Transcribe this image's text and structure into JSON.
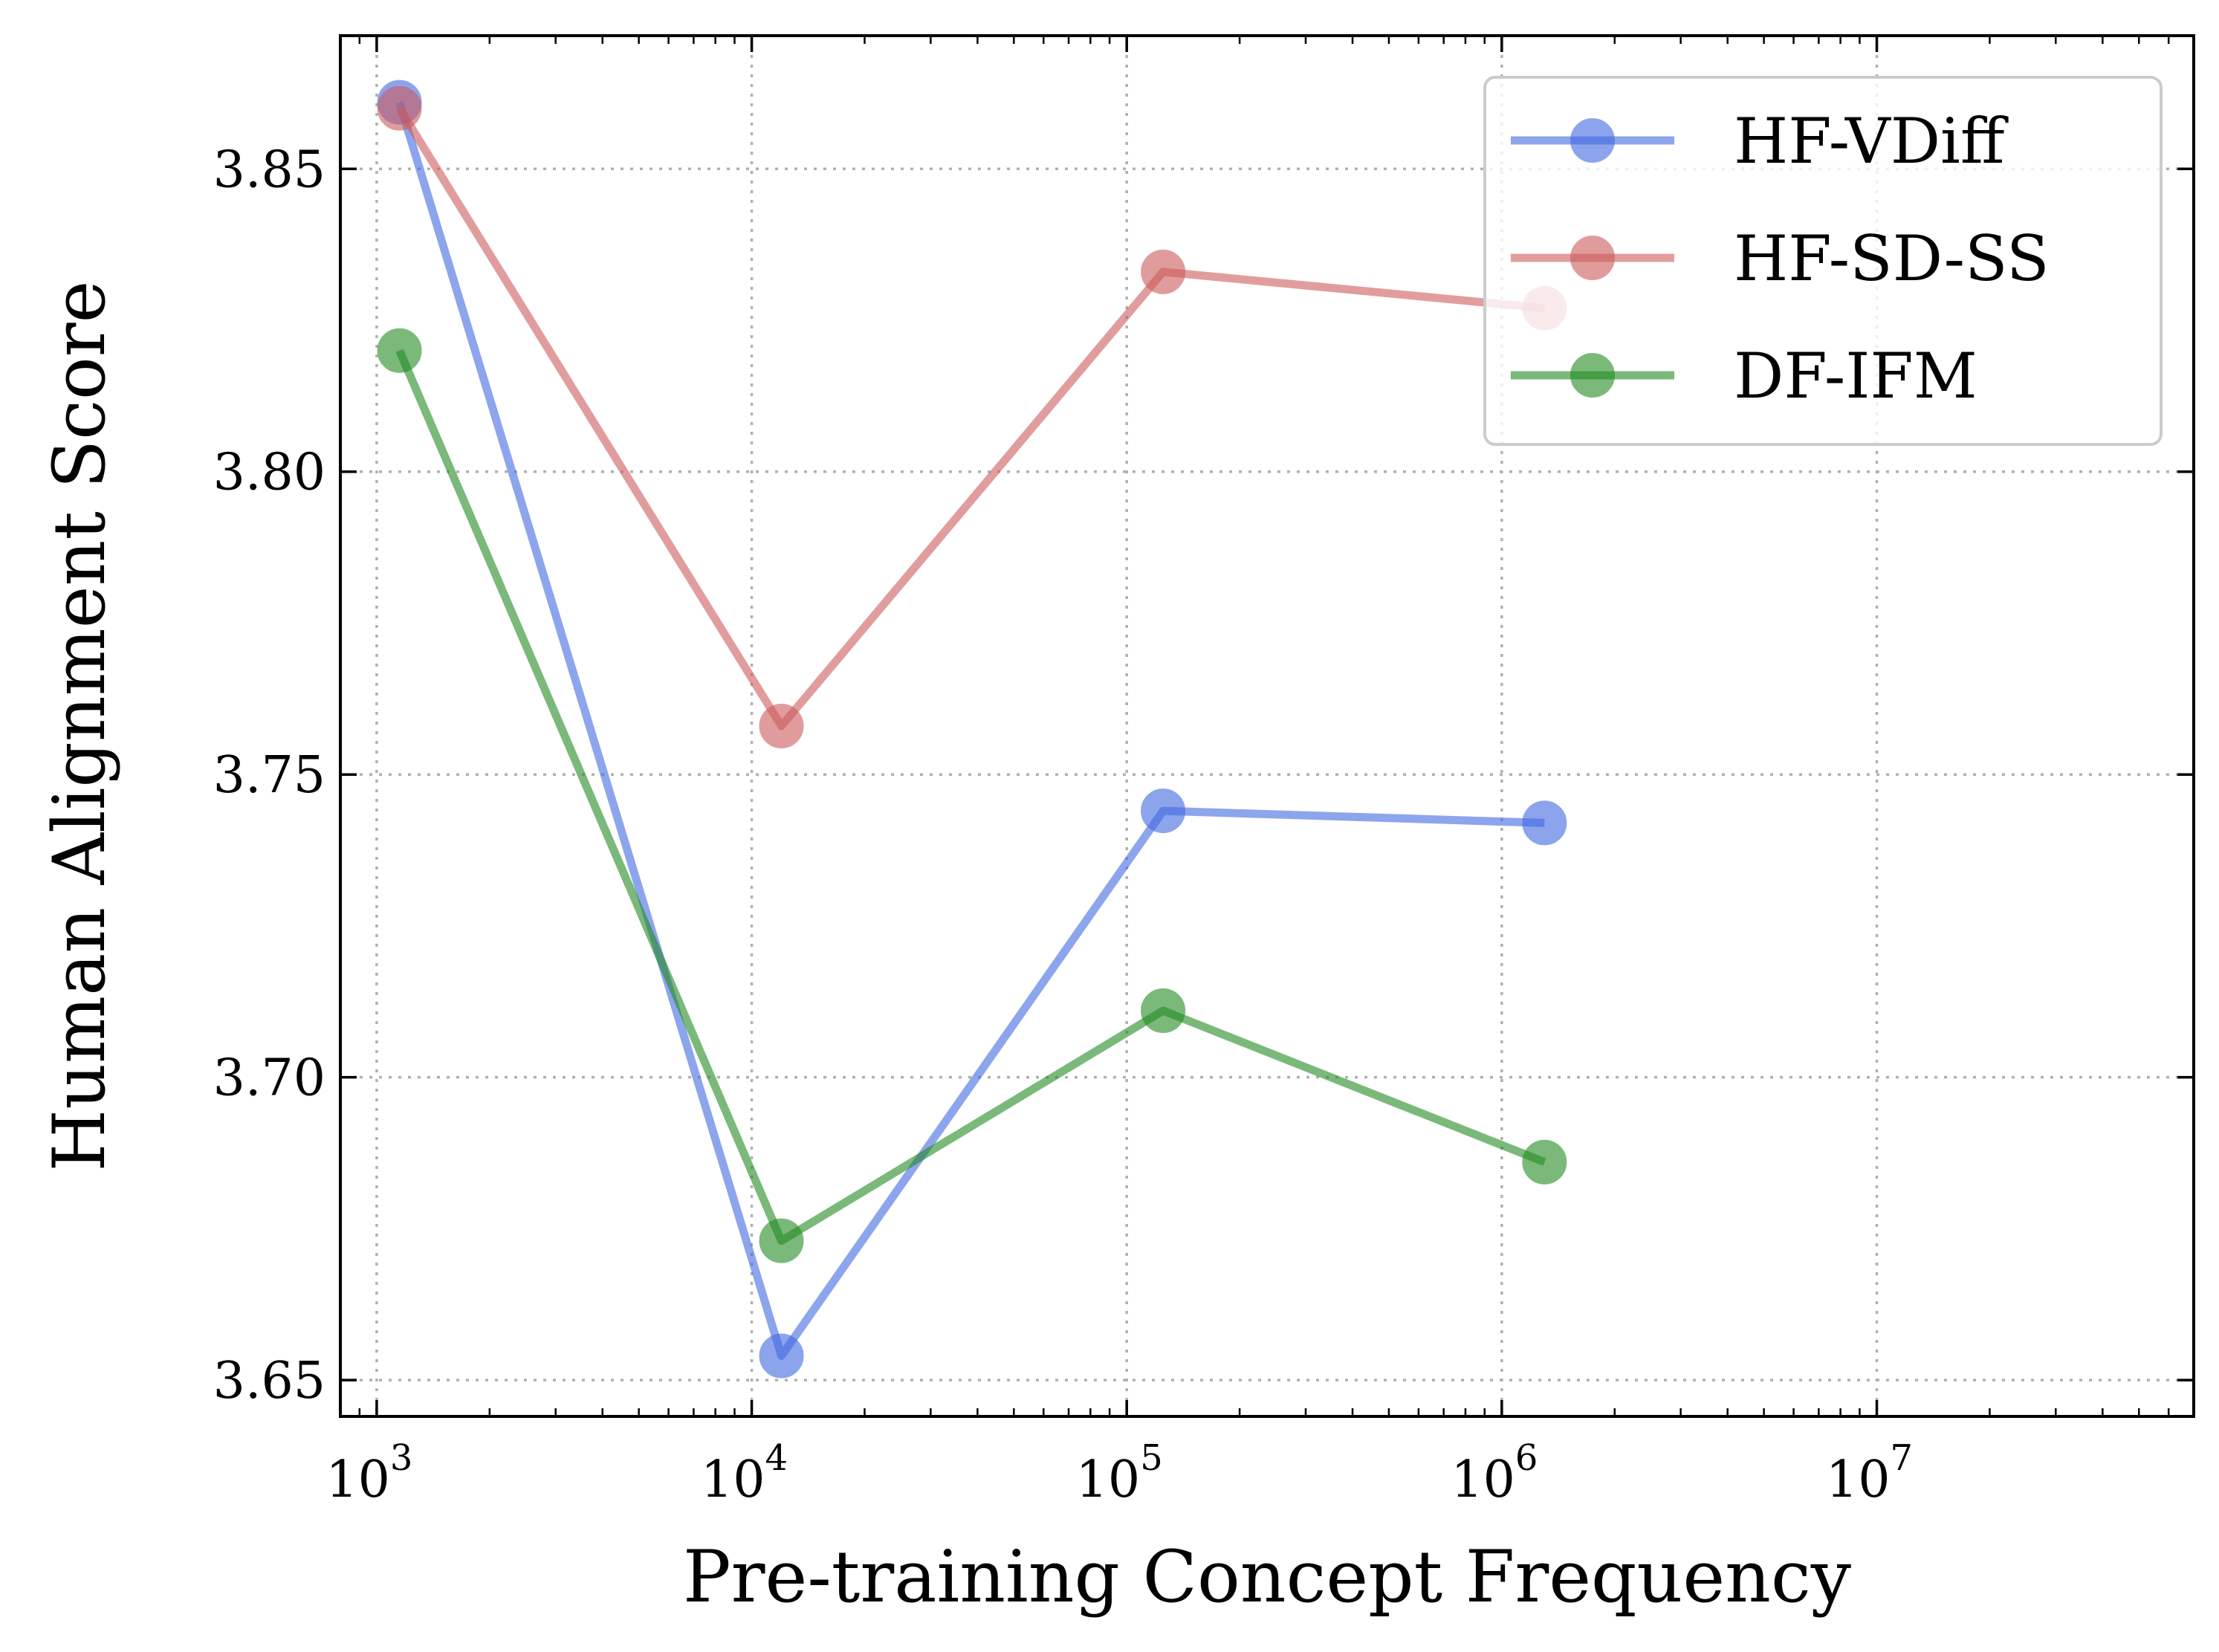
{
  "chart_data": {
    "type": "line",
    "xlabel": "Pre-training Concept Frequency",
    "ylabel": "Human Alignment Score",
    "xscale": "log",
    "xlim": [
      800,
      70000000
    ],
    "ylim": [
      3.644,
      3.872
    ],
    "grid": true,
    "legend_position": "top-right",
    "x_ticks": [
      {
        "value": 1000,
        "base": "10",
        "exp": "3"
      },
      {
        "value": 10000,
        "base": "10",
        "exp": "4"
      },
      {
        "value": 100000,
        "base": "10",
        "exp": "5"
      },
      {
        "value": 1000000,
        "base": "10",
        "exp": "6"
      },
      {
        "value": 10000000,
        "base": "10",
        "exp": "7"
      }
    ],
    "y_ticks": [
      {
        "value": 3.65,
        "label": "3.65"
      },
      {
        "value": 3.7,
        "label": "3.70"
      },
      {
        "value": 3.75,
        "label": "3.75"
      },
      {
        "value": 3.8,
        "label": "3.80"
      },
      {
        "value": 3.85,
        "label": "3.85"
      }
    ],
    "series": [
      {
        "name": "HF-VDiff",
        "color": "#4169e1",
        "x": [
          1150,
          12000,
          125000,
          1300000
        ],
        "y": [
          3.861,
          3.654,
          3.744,
          3.742
        ]
      },
      {
        "name": "HF-SD-SS",
        "color": "#cd5c5c",
        "x": [
          1150,
          12000,
          125000,
          1300000
        ],
        "y": [
          3.86,
          3.758,
          3.833,
          3.827
        ]
      },
      {
        "name": "DF-IFM",
        "color": "#228b22",
        "x": [
          1150,
          12000,
          125000,
          1300000
        ],
        "y": [
          3.82,
          3.673,
          3.711,
          3.686
        ]
      }
    ]
  }
}
